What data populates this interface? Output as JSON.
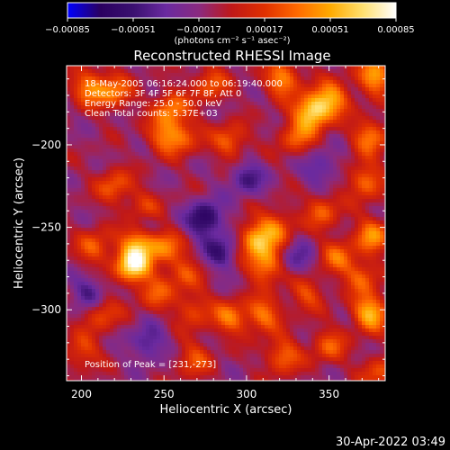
{
  "chart_data": {
    "type": "heatmap",
    "title": "Reconstructed RHESSI Image",
    "xlabel": "Heliocentric X (arcsec)",
    "ylabel": "Heliocentric Y (arcsec)",
    "xlim": [
      191,
      384
    ],
    "ylim": [
      -343,
      -152
    ],
    "x_ticks": [
      200,
      250,
      300,
      350
    ],
    "x_tick_labels": [
      "200",
      "250",
      "300",
      "350"
    ],
    "y_ticks": [
      -200,
      -250,
      -300
    ],
    "y_tick_labels": [
      "−200",
      "−250",
      "−300"
    ],
    "colorbar": {
      "range": [
        -0.00085,
        0.00085
      ],
      "tick_values": [
        -0.00085,
        -0.00051,
        -0.00017,
        0.00017,
        0.00051,
        0.00085
      ],
      "tick_labels": [
        "−0.00085",
        "−0.00051",
        "−0.00017",
        "0.00017",
        "0.00051",
        "0.00085"
      ],
      "unit_text": "(photons cm⁻² s⁻¹ asec⁻²)"
    },
    "colormap": [
      "#0000ff",
      "#2a0060",
      "#3a1070",
      "#6a2aa0",
      "#8a2a80",
      "#c01818",
      "#e03000",
      "#ff6a00",
      "#ffaa00",
      "#ffe070",
      "#ffffff"
    ],
    "annotations": [
      "18-May-2005 06:16:24.000 to 06:19:40.000",
      "Detectors: 3F 4F 5F 6F 7F 8F, Att 0",
      "Energy Range: 25.0 - 50.0 keV",
      "Clean     Total counts: 5.37E+03"
    ],
    "peak_label": "Position of Peak = [231,-273]",
    "peak": [
      231,
      -273
    ],
    "hotspots": [
      {
        "x": 231,
        "y": -273,
        "v": 0.00085
      },
      {
        "x": 235,
        "y": -258,
        "v": 0.00062
      },
      {
        "x": 250,
        "y": -262,
        "v": 0.00045
      },
      {
        "x": 208,
        "y": -262,
        "v": 0.0004
      },
      {
        "x": 238,
        "y": -240,
        "v": 0.00042
      },
      {
        "x": 262,
        "y": -278,
        "v": 0.00035
      },
      {
        "x": 220,
        "y": -225,
        "v": 0.0004
      },
      {
        "x": 205,
        "y": -165,
        "v": 0.0005
      },
      {
        "x": 220,
        "y": -168,
        "v": 0.00045
      },
      {
        "x": 250,
        "y": -195,
        "v": 0.0004
      },
      {
        "x": 254,
        "y": -178,
        "v": 0.00048
      },
      {
        "x": 278,
        "y": -163,
        "v": 0.0004
      },
      {
        "x": 262,
        "y": -195,
        "v": 0.00035
      },
      {
        "x": 290,
        "y": -198,
        "v": 0.00042
      },
      {
        "x": 322,
        "y": -160,
        "v": 0.00055
      },
      {
        "x": 340,
        "y": -180,
        "v": 0.00078
      },
      {
        "x": 352,
        "y": -172,
        "v": 0.00055
      },
      {
        "x": 330,
        "y": -195,
        "v": 0.0004
      },
      {
        "x": 378,
        "y": -158,
        "v": 0.00062
      },
      {
        "x": 375,
        "y": -195,
        "v": 0.0005
      },
      {
        "x": 372,
        "y": -222,
        "v": 0.00048
      },
      {
        "x": 346,
        "y": -240,
        "v": 0.0004
      },
      {
        "x": 305,
        "y": -258,
        "v": 0.00062
      },
      {
        "x": 312,
        "y": -273,
        "v": 0.00058
      },
      {
        "x": 318,
        "y": -250,
        "v": 0.00045
      },
      {
        "x": 376,
        "y": -255,
        "v": 0.00052
      },
      {
        "x": 355,
        "y": -268,
        "v": 0.0004
      },
      {
        "x": 370,
        "y": -280,
        "v": 0.0004
      },
      {
        "x": 212,
        "y": -302,
        "v": 0.00038
      },
      {
        "x": 245,
        "y": -290,
        "v": 0.00035
      },
      {
        "x": 268,
        "y": -300,
        "v": 0.00035
      },
      {
        "x": 290,
        "y": -305,
        "v": 0.00045
      },
      {
        "x": 310,
        "y": -303,
        "v": 0.00048
      },
      {
        "x": 336,
        "y": -290,
        "v": 0.00035
      },
      {
        "x": 375,
        "y": -302,
        "v": 0.00068
      },
      {
        "x": 350,
        "y": -322,
        "v": 0.00038
      },
      {
        "x": 322,
        "y": -328,
        "v": 0.00045
      },
      {
        "x": 268,
        "y": -330,
        "v": 0.00035
      },
      {
        "x": 200,
        "y": -325,
        "v": 0.00035
      },
      {
        "x": 380,
        "y": -338,
        "v": 0.00035
      }
    ],
    "coldspots": [
      {
        "x": 238,
        "y": -248,
        "v": -0.0004
      },
      {
        "x": 275,
        "y": -245,
        "v": -0.00055
      },
      {
        "x": 285,
        "y": -265,
        "v": -0.0004
      },
      {
        "x": 300,
        "y": -220,
        "v": -0.00035
      },
      {
        "x": 205,
        "y": -290,
        "v": -0.00035
      },
      {
        "x": 330,
        "y": -270,
        "v": -0.0003
      },
      {
        "x": 345,
        "y": -215,
        "v": -0.0003
      },
      {
        "x": 240,
        "y": -320,
        "v": -0.00035
      }
    ]
  },
  "footer": {
    "timestamp": "30-Apr-2022 03:49"
  }
}
